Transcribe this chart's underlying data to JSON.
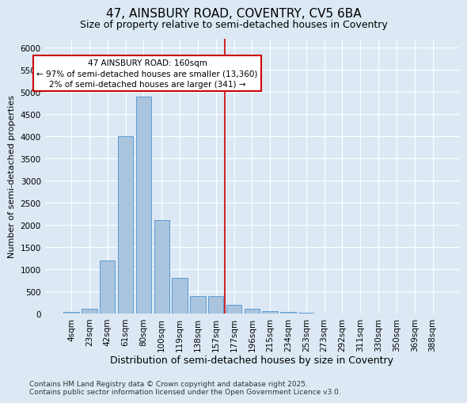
{
  "title_line1": "47, AINSBURY ROAD, COVENTRY, CV5 6BA",
  "title_line2": "Size of property relative to semi-detached houses in Coventry",
  "xlabel": "Distribution of semi-detached houses by size in Coventry",
  "ylabel": "Number of semi-detached properties",
  "categories": [
    "4sqm",
    "23sqm",
    "42sqm",
    "61sqm",
    "80sqm",
    "100sqm",
    "119sqm",
    "138sqm",
    "157sqm",
    "177sqm",
    "196sqm",
    "215sqm",
    "234sqm",
    "253sqm",
    "273sqm",
    "292sqm",
    "311sqm",
    "330sqm",
    "350sqm",
    "369sqm",
    "388sqm"
  ],
  "values": [
    30,
    100,
    1200,
    4000,
    4900,
    2100,
    800,
    400,
    400,
    200,
    110,
    50,
    30,
    10,
    5,
    2,
    1,
    0,
    0,
    0,
    0
  ],
  "bar_color": "#aac4de",
  "bar_edge_color": "#5b9bd5",
  "vline_index": 8.5,
  "annotation_text": "47 AINSBURY ROAD: 160sqm\n← 97% of semi-detached houses are smaller (13,360)\n2% of semi-detached houses are larger (341) →",
  "annotation_box_color": "#ffffff",
  "annotation_box_edge": "#cc0000",
  "vline_color": "#cc0000",
  "ylim": [
    0,
    6200
  ],
  "yticks": [
    0,
    500,
    1000,
    1500,
    2000,
    2500,
    3000,
    3500,
    4000,
    4500,
    5000,
    5500,
    6000
  ],
  "background_color": "#dce9f5",
  "grid_color": "#ffffff",
  "footer_line1": "Contains HM Land Registry data © Crown copyright and database right 2025.",
  "footer_line2": "Contains public sector information licensed under the Open Government Licence v3.0.",
  "title_fontsize": 11,
  "subtitle_fontsize": 9,
  "xlabel_fontsize": 9,
  "ylabel_fontsize": 8,
  "tick_fontsize": 7.5,
  "annotation_fontsize": 7.5,
  "footer_fontsize": 6.5
}
